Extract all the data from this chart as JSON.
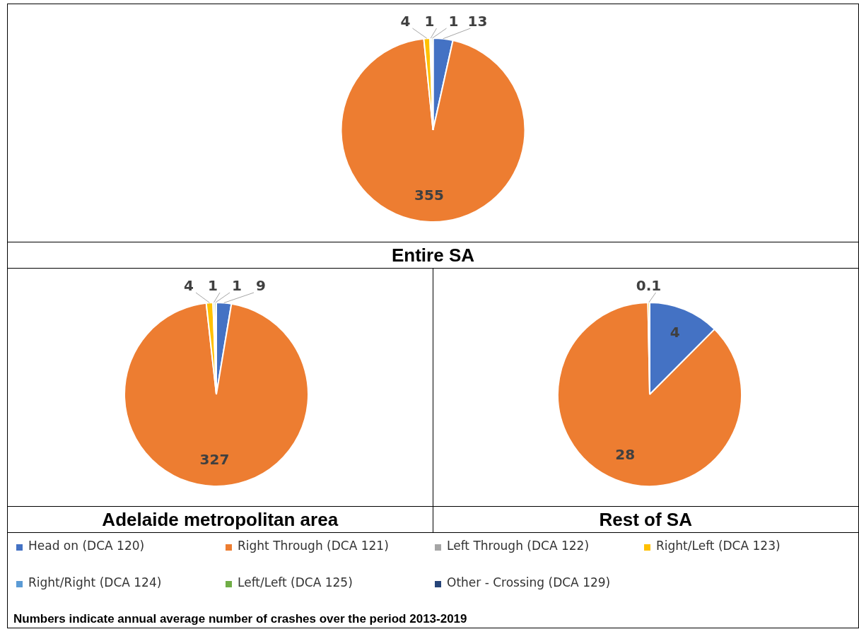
{
  "chart_data": [
    {
      "type": "pie",
      "title": "Entire SA",
      "categories": [
        "Head on (DCA 120)",
        "Right Through (DCA 121)",
        "Left Through (DCA 122)",
        "Right/Left (DCA 123)",
        "Right/Right (DCA 124)",
        "Left/Left (DCA 125)",
        "Other - Crossing (DCA 129)"
      ],
      "values": [
        13,
        355,
        null,
        4,
        1,
        1,
        null
      ],
      "colors": [
        "#4472c4",
        "#ed7d31",
        "#a5a5a5",
        "#ffc000",
        "#5b9bd5",
        "#70ad47",
        "#264478"
      ],
      "data_labels": true,
      "legend": "bottom",
      "annotations": [
        "Numbers indicate annual average number of crashes over the period 2013-2019"
      ]
    },
    {
      "type": "pie",
      "title": "Adelaide metropolitan area",
      "categories": [
        null,
        null,
        null,
        null,
        null,
        null,
        null
      ],
      "values": [
        9,
        327,
        null,
        4,
        1,
        1,
        null
      ],
      "colors": [
        "#4472c4",
        "#ed7d31",
        "#a5a5a5",
        "#ffc000",
        "#5b9bd5",
        "#70ad47",
        "#264478"
      ],
      "data_labels": true
    },
    {
      "type": "pie",
      "title": "Rest of SA",
      "categories": [
        null,
        null,
        null,
        null,
        null,
        null,
        null
      ],
      "values": [
        4,
        28,
        null,
        0.1,
        null,
        null,
        null
      ],
      "colors": [
        "#4472c4",
        "#ed7d31",
        "#a5a5a5",
        "#ffc000",
        "#5b9bd5",
        "#70ad47",
        "#264478"
      ],
      "data_labels": true
    }
  ]
}
